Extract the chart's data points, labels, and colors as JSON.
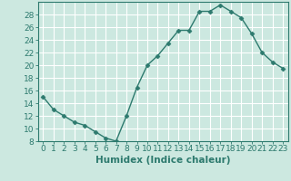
{
  "x": [
    0,
    1,
    2,
    3,
    4,
    5,
    6,
    7,
    8,
    9,
    10,
    11,
    12,
    13,
    14,
    15,
    16,
    17,
    18,
    19,
    20,
    21,
    22,
    23
  ],
  "y": [
    15,
    13,
    12,
    11,
    10.5,
    9.5,
    8.5,
    8,
    12,
    16.5,
    20,
    21.5,
    23.5,
    25.5,
    25.5,
    28.5,
    28.5,
    29.5,
    28.5,
    27.5,
    25,
    22,
    20.5,
    19.5
  ],
  "xlabel": "Humidex (Indice chaleur)",
  "xlim": [
    -0.5,
    23.5
  ],
  "ylim": [
    8,
    30
  ],
  "yticks": [
    8,
    10,
    12,
    14,
    16,
    18,
    20,
    22,
    24,
    26,
    28
  ],
  "xticks": [
    0,
    1,
    2,
    3,
    4,
    5,
    6,
    7,
    8,
    9,
    10,
    11,
    12,
    13,
    14,
    15,
    16,
    17,
    18,
    19,
    20,
    21,
    22,
    23
  ],
  "line_color": "#2d7a6e",
  "marker": "D",
  "marker_size": 2.5,
  "background_color": "#cce8e0",
  "grid_color": "#ffffff",
  "tick_color": "#2d7a6e",
  "label_color": "#2d7a6e",
  "xlabel_fontsize": 7.5,
  "tick_fontsize": 6.5
}
